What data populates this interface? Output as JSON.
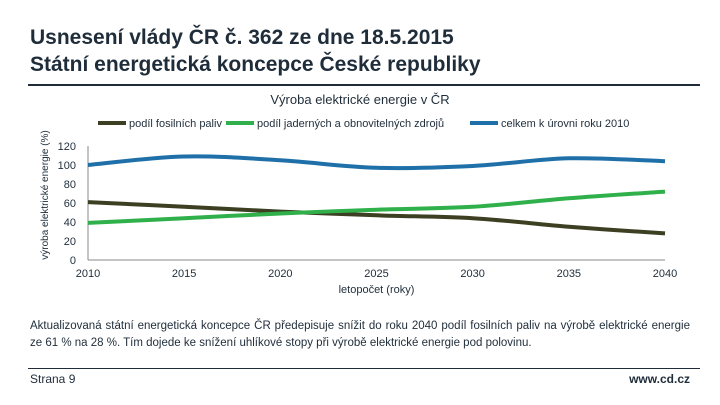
{
  "slide": {
    "title_line1": "Usnesení vlády ČR č. 362 ze dne 18.5.2015",
    "title_line2": "Státní energetická koncepce České republiky",
    "description": "Aktualizovaná státní energetická koncepce ČR předepisuje snížit do roku 2040 podíl fosilních paliv na výrobě elektrické energie ze 61 % na 28 %. Tím dojede ke snížení uhlíkové stopy při výrobě elektrické energie pod polovinu.",
    "page_number": "Strana 9",
    "website": "www.cd.cz"
  },
  "chart_data": {
    "type": "line",
    "title": "Výroba elektrické energie v ČR",
    "xlabel": "letopočet (roky)",
    "ylabel": "výroba elektrické energie (%)",
    "xlim": [
      2010,
      2040
    ],
    "ylim": [
      0,
      120
    ],
    "x_ticks": [
      "2010",
      "2015",
      "2020",
      "2025",
      "2030",
      "2035",
      "2040"
    ],
    "y_ticks": [
      "0",
      "20",
      "40",
      "60",
      "80",
      "100",
      "120"
    ],
    "grid": false,
    "legend_position": "top",
    "series": [
      {
        "name": "podíl fosilních paliv",
        "color": "#3c3f22",
        "x": [
          2010,
          2015,
          2020,
          2025,
          2030,
          2035,
          2040
        ],
        "values": [
          61,
          56,
          51,
          47,
          44,
          35,
          28
        ]
      },
      {
        "name": "podíl jaderných a obnovitelných zdrojů",
        "color": "#2fb04a",
        "x": [
          2010,
          2015,
          2020,
          2025,
          2030,
          2035,
          2040
        ],
        "values": [
          39,
          44,
          49,
          53,
          56,
          65,
          72
        ]
      },
      {
        "name": "celkem k úrovni roku 2010",
        "color": "#1f6fa8",
        "x": [
          2010,
          2015,
          2020,
          2025,
          2030,
          2035,
          2040
        ],
        "values": [
          100,
          109,
          105,
          97,
          99,
          107,
          104
        ]
      }
    ]
  }
}
